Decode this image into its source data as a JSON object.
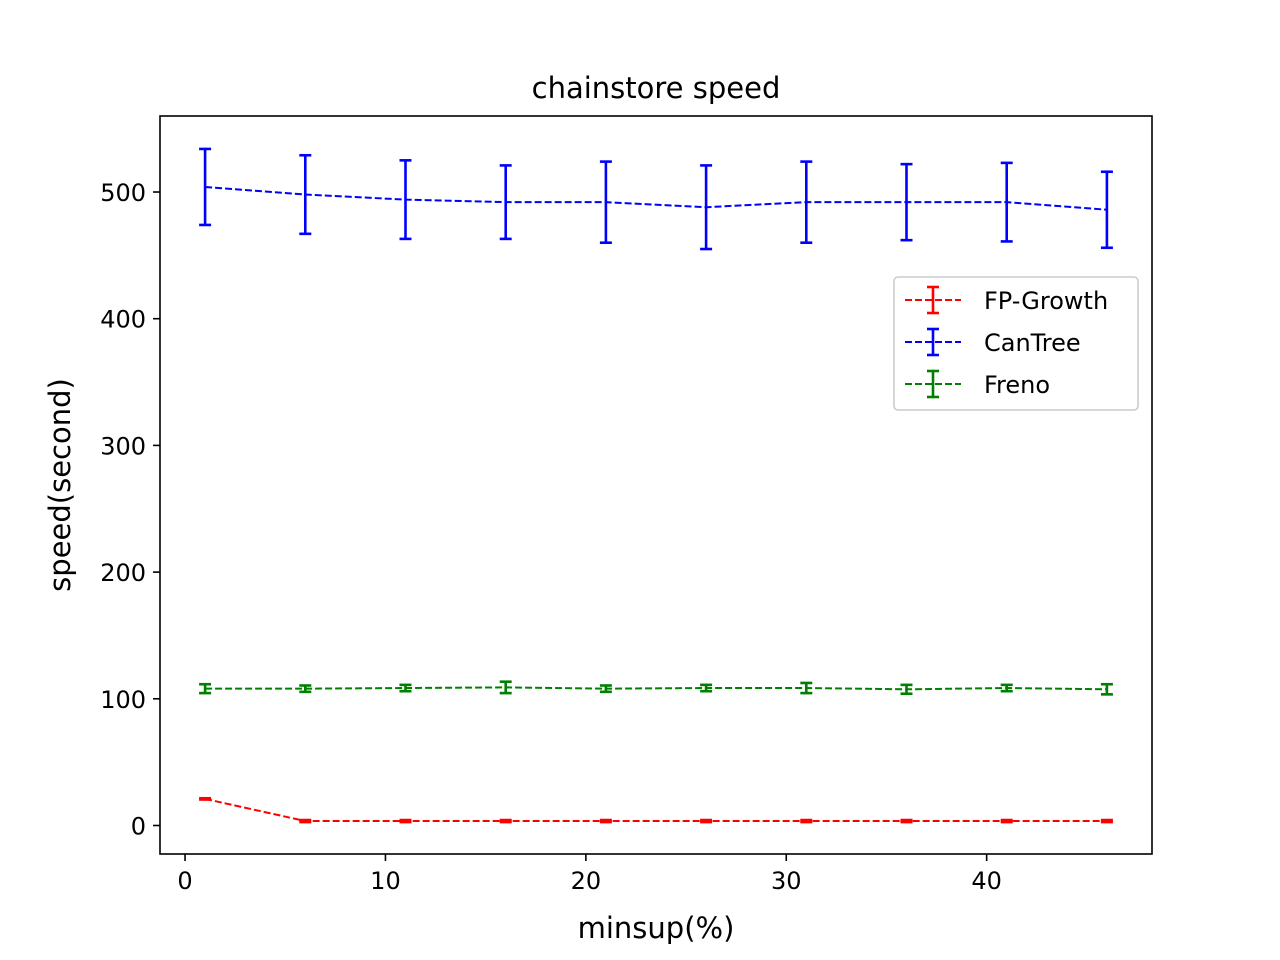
{
  "chart_data": {
    "type": "line",
    "title": "chainstore speed",
    "xlabel": "minsup(%)",
    "ylabel": "speed(second)",
    "xlim": [
      -1.25,
      48.25
    ],
    "ylim": [
      -22.5,
      560
    ],
    "xticks": [
      0,
      10,
      20,
      30,
      40
    ],
    "yticks": [
      0,
      100,
      200,
      300,
      400,
      500
    ],
    "grid": false,
    "legend_position": "upper right",
    "x": [
      1,
      6,
      11,
      16,
      21,
      26,
      31,
      36,
      41,
      46
    ],
    "series": [
      {
        "name": "FP-Growth",
        "color": "#ff0000",
        "line_style": "dashed",
        "values": [
          21,
          3.5,
          3.5,
          3.5,
          3.5,
          3.5,
          3.5,
          3.5,
          3.5,
          3.5
        ],
        "errors": [
          0.5,
          0.8,
          0.8,
          0.8,
          0.8,
          0.8,
          0.8,
          0.8,
          0.8,
          0.8
        ]
      },
      {
        "name": "CanTree",
        "color": "#0000ff",
        "line_style": "dashed",
        "values": [
          504,
          498,
          494,
          492,
          492,
          488,
          492,
          492,
          492,
          486
        ],
        "errors": [
          30,
          31,
          31,
          29,
          32,
          33,
          32,
          30,
          31,
          30
        ]
      },
      {
        "name": "Freno",
        "color": "#008000",
        "line_style": "dashed",
        "values": [
          108,
          108,
          108.5,
          109,
          108,
          108.5,
          108.5,
          107.5,
          108.5,
          107.5
        ],
        "errors": [
          3.5,
          2.5,
          2.5,
          4.5,
          2.5,
          2.5,
          4,
          3.5,
          2.5,
          4
        ]
      }
    ]
  }
}
